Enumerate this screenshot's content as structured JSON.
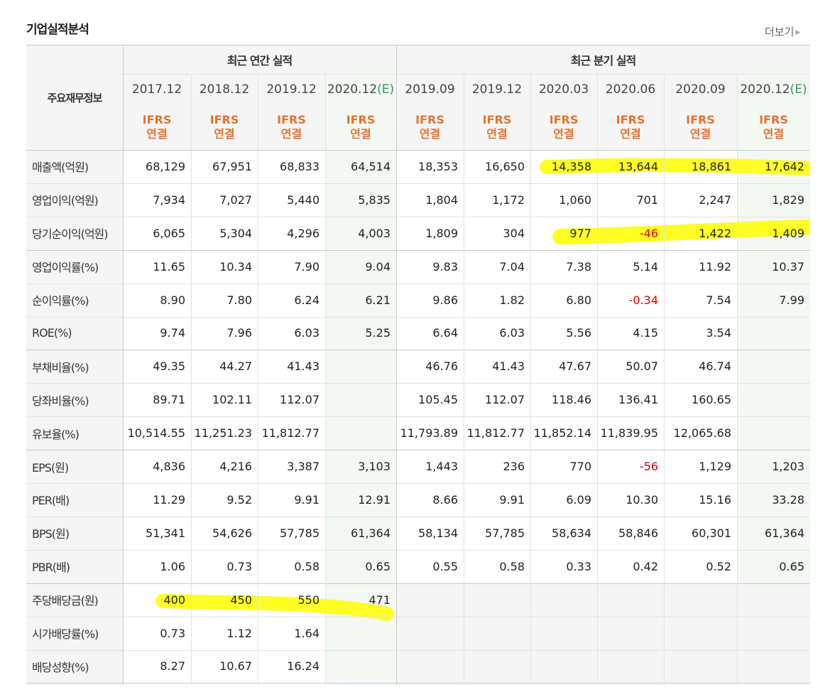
{
  "title": "기업실적분석",
  "more_label": "더보기",
  "corner_label": "주요재무정보",
  "groups": [
    "최근 연간 실적",
    "최근 분기 실적"
  ],
  "periods": [
    {
      "label": "2017.12",
      "est": ""
    },
    {
      "label": "2018.12",
      "est": ""
    },
    {
      "label": "2019.12",
      "est": ""
    },
    {
      "label": "2020.12",
      "est": "(E)"
    },
    {
      "label": "2019.09",
      "est": ""
    },
    {
      "label": "2019.12",
      "est": ""
    },
    {
      "label": "2020.03",
      "est": ""
    },
    {
      "label": "2020.06",
      "est": ""
    },
    {
      "label": "2020.09",
      "est": ""
    },
    {
      "label": "2020.12",
      "est": "(E)"
    }
  ],
  "ifrs_line1": "IFRS",
  "ifrs_line2": "연결",
  "rows": [
    {
      "label": "매출액(억원)",
      "values": [
        "68,129",
        "67,951",
        "68,833",
        "64,514",
        "18,353",
        "16,650",
        "14,358",
        "13,644",
        "18,861",
        "17,642"
      ]
    },
    {
      "label": "영업이익(억원)",
      "values": [
        "7,934",
        "7,027",
        "5,440",
        "5,835",
        "1,804",
        "1,172",
        "1,060",
        "701",
        "2,247",
        "1,829"
      ]
    },
    {
      "label": "당기순이익(억원)",
      "values": [
        "6,065",
        "5,304",
        "4,296",
        "4,003",
        "1,809",
        "304",
        "977",
        "-46",
        "1,422",
        "1,409"
      ]
    },
    {
      "label": "영업이익률(%)",
      "values": [
        "11.65",
        "10.34",
        "7.90",
        "9.04",
        "9.83",
        "7.04",
        "7.38",
        "5.14",
        "11.92",
        "10.37"
      ]
    },
    {
      "label": "순이익률(%)",
      "values": [
        "8.90",
        "7.80",
        "6.24",
        "6.21",
        "9.86",
        "1.82",
        "6.80",
        "-0.34",
        "7.54",
        "7.99"
      ]
    },
    {
      "label": "ROE(%)",
      "values": [
        "9.74",
        "7.96",
        "6.03",
        "5.25",
        "6.64",
        "6.03",
        "5.56",
        "4.15",
        "3.54",
        ""
      ]
    },
    {
      "label": "부채비율(%)",
      "values": [
        "49.35",
        "44.27",
        "41.43",
        "",
        "46.76",
        "41.43",
        "47.67",
        "50.07",
        "46.74",
        ""
      ]
    },
    {
      "label": "당좌비율(%)",
      "values": [
        "89.71",
        "102.11",
        "112.07",
        "",
        "105.45",
        "112.07",
        "118.46",
        "136.41",
        "160.65",
        ""
      ]
    },
    {
      "label": "유보율(%)",
      "values": [
        "10,514.55",
        "11,251.23",
        "11,812.77",
        "",
        "11,793.89",
        "11,812.77",
        "11,852.14",
        "11,839.95",
        "12,065.68",
        ""
      ]
    },
    {
      "label": "EPS(원)",
      "values": [
        "4,836",
        "4,216",
        "3,387",
        "3,103",
        "1,443",
        "236",
        "770",
        "-56",
        "1,129",
        "1,203"
      ]
    },
    {
      "label": "PER(배)",
      "values": [
        "11.29",
        "9.52",
        "9.91",
        "12.91",
        "8.66",
        "9.91",
        "6.09",
        "10.30",
        "15.16",
        "33.28"
      ]
    },
    {
      "label": "BPS(원)",
      "values": [
        "51,341",
        "54,626",
        "57,785",
        "61,364",
        "58,134",
        "57,785",
        "58,634",
        "58,846",
        "60,301",
        "61,364"
      ]
    },
    {
      "label": "PBR(배)",
      "values": [
        "1.06",
        "0.73",
        "0.58",
        "0.65",
        "0.55",
        "0.58",
        "0.33",
        "0.42",
        "0.52",
        "0.65"
      ]
    },
    {
      "label": "주당배당금(원)",
      "values": [
        "400",
        "450",
        "550",
        "471",
        "",
        "",
        "",
        "",
        "",
        ""
      ]
    },
    {
      "label": "시가배당률(%)",
      "values": [
        "0.73",
        "1.12",
        "1.64",
        "",
        "",
        "",
        "",
        "",
        "",
        ""
      ]
    },
    {
      "label": "배당성향(%)",
      "values": [
        "8.27",
        "10.67",
        "16.24",
        "",
        "",
        "",
        "",
        "",
        "",
        ""
      ]
    }
  ],
  "colors": {
    "grid_line": "#e2e2e2",
    "group_line": "#c9c9c9",
    "estimate_bg": "#f3f8f3",
    "highlight": "#ffff00",
    "negative": "#e00000",
    "ifrs": "#e8742c",
    "estimate_text": "#2f9a5a"
  }
}
